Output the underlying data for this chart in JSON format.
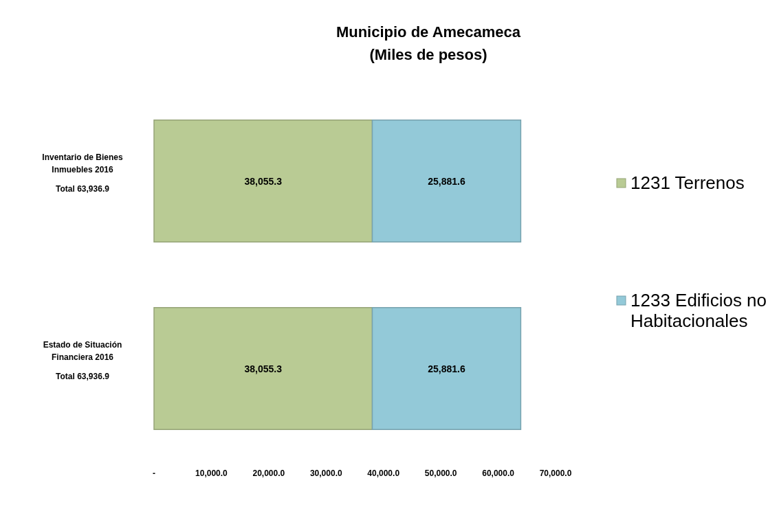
{
  "chart_data": {
    "type": "bar",
    "orientation": "horizontal",
    "stacked": true,
    "title": "Municipio de Amecameca",
    "subtitle": "(Miles de pesos)",
    "categories": [
      "Inventario de Bienes Inmuebles 2016\n\nTotal 63,936.9",
      "Estado de Situación Financiera 2016\n\nTotal 63,936.9"
    ],
    "series": [
      {
        "name": "1231 Terrenos",
        "color": "#b9cb94",
        "values": [
          38055.3,
          38055.3
        ],
        "value_labels": [
          "38,055.3",
          "38,055.3"
        ]
      },
      {
        "name": "1233 Edificios no Habitacionales",
        "color": "#93c9d8",
        "values": [
          25881.6,
          25881.6
        ],
        "value_labels": [
          "25,881.6",
          "25,881.6"
        ]
      }
    ],
    "xlim": [
      0,
      70000
    ],
    "xticks": [
      {
        "value": 0,
        "label": "-"
      },
      {
        "value": 10000,
        "label": "10,000.0"
      },
      {
        "value": 20000,
        "label": "20,000.0"
      },
      {
        "value": 30000,
        "label": "30,000.0"
      },
      {
        "value": 40000,
        "label": "40,000.0"
      },
      {
        "value": 50000,
        "label": "50,000.0"
      },
      {
        "value": 60000,
        "label": "60,000.0"
      },
      {
        "value": 70000,
        "label": "70,000.0"
      }
    ],
    "legend": "right"
  }
}
